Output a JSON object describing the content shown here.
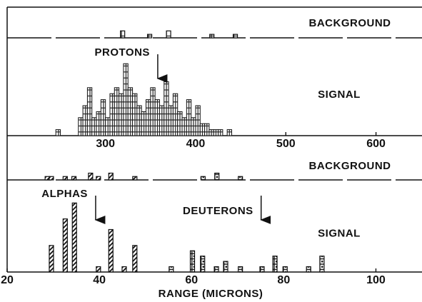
{
  "chart_data": [
    {
      "type": "bar",
      "label": "BACKGROUND",
      "xlim": [
        191,
        651
      ],
      "ylim": [
        0,
        8
      ],
      "baseline": "dashed",
      "series": [
        {
          "pattern": "grid",
          "x": [
            319,
            349,
            370,
            418,
            444
          ],
          "values": [
            2,
            1,
            2,
            1,
            1
          ]
        }
      ]
    },
    {
      "type": "histogram",
      "label": "SIGNAL",
      "xlim": [
        191,
        651
      ],
      "ylim": [
        0,
        15
      ],
      "xticks": [
        300,
        400,
        500,
        600
      ],
      "pattern": "grid",
      "bins": [
        245,
        250,
        255,
        260,
        265,
        270,
        275,
        280,
        285,
        290,
        295,
        300,
        305,
        310,
        315,
        320,
        325,
        330,
        335,
        340,
        345,
        350,
        355,
        360,
        365,
        370,
        375,
        380,
        385,
        390,
        395,
        400,
        405,
        410,
        415,
        420,
        425,
        430,
        435,
        440
      ],
      "counts": [
        1,
        0,
        0,
        0,
        0,
        3,
        5,
        8,
        3,
        4,
        6,
        3,
        7,
        8,
        7,
        12,
        8,
        7,
        5,
        4,
        6,
        8,
        6,
        5,
        9,
        5,
        7,
        4,
        3,
        6,
        3,
        5,
        2,
        2,
        1,
        1,
        1,
        0,
        1
      ],
      "annotations": [
        {
          "text": "PROTONS",
          "x": 358
        }
      ]
    },
    {
      "type": "bar",
      "label": "BACKGROUND",
      "xlim": [
        20,
        110
      ],
      "ylim": [
        0,
        8
      ],
      "baseline": "dashed",
      "series": [
        {
          "pattern": "hatch",
          "x": [
            28.7,
            29.6,
            32.6,
            34.5,
            38.1,
            39.8,
            42.5,
            47.7
          ],
          "values": [
            1,
            1,
            1,
            1,
            2,
            1,
            2,
            1
          ]
        },
        {
          "pattern": "dots",
          "x": [
            62.5,
            65.5,
            70.6
          ],
          "values": [
            1,
            2,
            1
          ]
        }
      ]
    },
    {
      "type": "bar",
      "label": "SIGNAL",
      "xlim": [
        20,
        110
      ],
      "ylim": [
        0,
        16
      ],
      "xticks": [
        20,
        40,
        60,
        80,
        100
      ],
      "xlabel": "RANGE (MICRONS)",
      "series": [
        {
          "pattern": "hatch",
          "x": [
            29.6,
            32.6,
            34.6,
            39.8,
            42.5,
            45.4,
            47.7
          ],
          "values": [
            5,
            10,
            13,
            1,
            8,
            1,
            5
          ]
        },
        {
          "pattern": "dots",
          "x": [
            55.6,
            60.2,
            62.4,
            65.4,
            67.4,
            70.6,
            75.3,
            78.1,
            80.3,
            85.4,
            88.3
          ],
          "values": [
            1,
            4,
            3,
            1,
            2,
            1,
            1,
            3,
            1,
            1,
            3
          ]
        }
      ],
      "annotations": [
        {
          "text": "ALPHAS",
          "x": 39.2
        },
        {
          "text": "DEUTERONS",
          "x": 75.1
        }
      ]
    }
  ]
}
